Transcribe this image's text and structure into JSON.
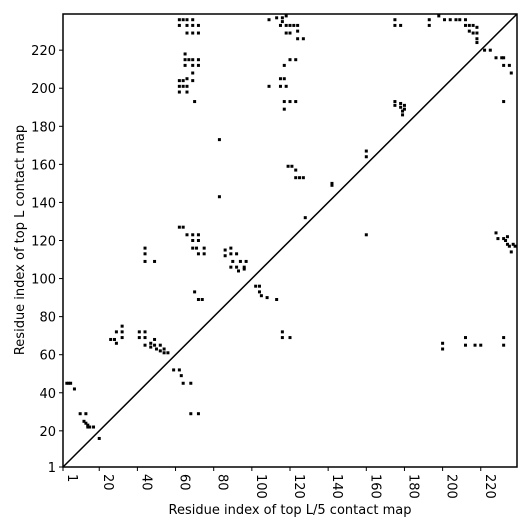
{
  "chart_data": {
    "type": "scatter",
    "xlabel": "Residue index of top L/5 contact map",
    "ylabel": "Residue index of top L contact map",
    "xlim": [
      1,
      239
    ],
    "ylim": [
      1,
      239
    ],
    "xticks": [
      1,
      20,
      40,
      60,
      80,
      100,
      120,
      140,
      160,
      180,
      200,
      220
    ],
    "yticks": [
      1,
      20,
      40,
      60,
      80,
      100,
      120,
      140,
      160,
      180,
      200,
      220
    ],
    "color": "#000000",
    "diagonal": true,
    "grid": false,
    "x": [
      62,
      62,
      64,
      66,
      66,
      69,
      69,
      72,
      72,
      69,
      66,
      65,
      65,
      65,
      67,
      69,
      69,
      72,
      72,
      62,
      62,
      62,
      64,
      64,
      66,
      66,
      66,
      69,
      69,
      70,
      109,
      113,
      116,
      116,
      118,
      118,
      120,
      120,
      122,
      124,
      124,
      124,
      127,
      118,
      115,
      117,
      120,
      123,
      115,
      117,
      115,
      118,
      109,
      117,
      117,
      120,
      123,
      175,
      175,
      178,
      193,
      193,
      175,
      175,
      178,
      178,
      179,
      179,
      180,
      180,
      198,
      201,
      204,
      207,
      209,
      212,
      212,
      214,
      214,
      216,
      216,
      218,
      218,
      218,
      218,
      222,
      225,
      228,
      231,
      232,
      235,
      236,
      232,
      232,
      83,
      83,
      119,
      121,
      123,
      123,
      125,
      127,
      128,
      142,
      142,
      160,
      160,
      160,
      62,
      64,
      66,
      69,
      69,
      72,
      72,
      69,
      71,
      72,
      75,
      75,
      44,
      44,
      44,
      49,
      86,
      86,
      89,
      89,
      90,
      89,
      92,
      92,
      94,
      96,
      96,
      93,
      97,
      102,
      104,
      104,
      105,
      108,
      113,
      72,
      74,
      70,
      26,
      28,
      29,
      29,
      32,
      32,
      32,
      41,
      41,
      44,
      44,
      44,
      47,
      47,
      49,
      49,
      50,
      52,
      52,
      54,
      54,
      56,
      59,
      62,
      63,
      64,
      68,
      3,
      4,
      5,
      7,
      10,
      13,
      12,
      13,
      14,
      14,
      15,
      17,
      20,
      68,
      72,
      116,
      116,
      120,
      200,
      200,
      212,
      212,
      217,
      220,
      228,
      229,
      232,
      233,
      234,
      234,
      235,
      236,
      237,
      238,
      232,
      232
    ],
    "y": [
      236,
      233,
      236,
      236,
      233,
      236,
      233,
      233,
      229,
      229,
      229,
      218,
      215,
      212,
      215,
      215,
      212,
      215,
      212,
      204,
      201,
      198,
      204,
      201,
      201,
      198,
      205,
      204,
      208,
      193,
      236,
      237,
      237,
      235,
      238,
      233,
      233,
      229,
      233,
      233,
      230,
      226,
      226,
      229,
      233,
      212,
      215,
      215,
      205,
      205,
      201,
      201,
      201,
      193,
      189,
      193,
      193,
      236,
      233,
      233,
      236,
      233,
      193,
      191,
      192,
      190,
      188,
      186,
      191,
      189,
      238,
      236,
      236,
      236,
      236,
      236,
      233,
      233,
      230,
      233,
      229,
      229,
      226,
      232,
      224,
      220,
      220,
      216,
      216,
      212,
      212,
      208,
      193,
      216,
      173,
      143,
      159,
      159,
      157,
      153,
      153,
      153,
      132,
      150,
      149,
      167,
      164,
      123,
      127,
      127,
      123,
      123,
      120,
      123,
      120,
      116,
      116,
      113,
      116,
      113,
      116,
      113,
      109,
      109,
      115,
      112,
      116,
      113,
      109,
      106,
      106,
      113,
      109,
      106,
      105,
      104,
      109,
      96,
      96,
      93,
      91,
      90,
      89,
      89,
      89,
      93,
      68,
      68,
      72,
      66,
      72,
      75,
      69,
      72,
      69,
      72,
      69,
      65,
      66,
      64,
      68,
      65,
      63,
      65,
      62,
      63,
      61,
      61,
      52,
      52,
      49,
      45,
      45,
      45,
      45,
      45,
      42,
      29,
      29,
      25,
      24,
      23,
      22,
      22,
      22,
      16,
      29,
      29,
      72,
      69,
      69,
      66,
      63,
      69,
      65,
      65,
      65,
      124,
      121,
      121,
      120,
      122,
      118,
      117,
      114,
      118,
      117,
      65,
      69
    ]
  }
}
